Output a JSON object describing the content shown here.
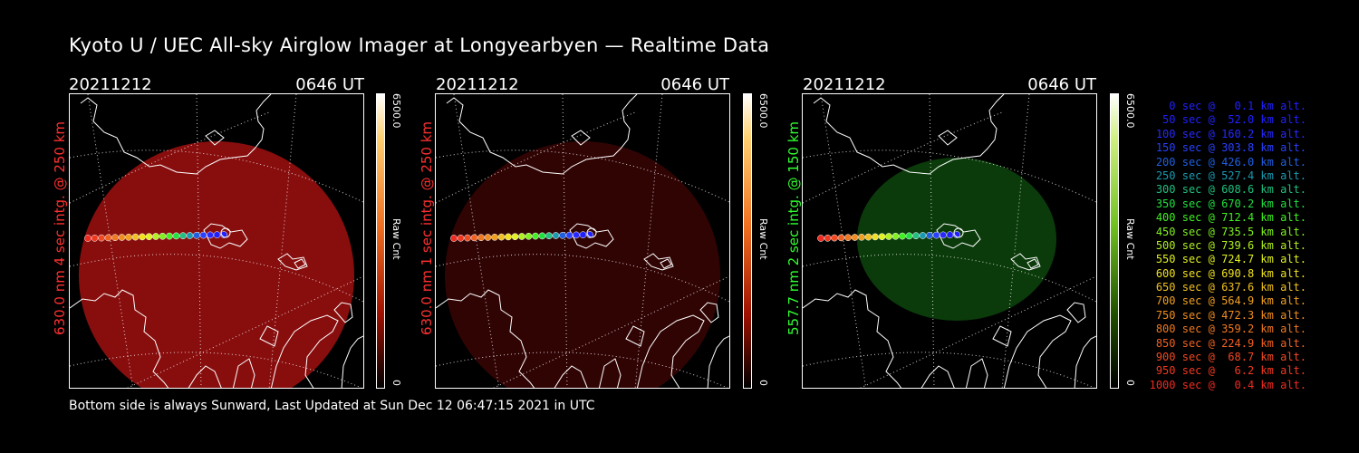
{
  "title": "Kyoto U / UEC All-sky Airglow Imager at Longyearbyen — Realtime Data",
  "footer": "Bottom side is always Sunward, Last Updated at Sun Dec 12 06:47:15 2021 in UTC",
  "panels": [
    {
      "date": "20211212",
      "time": "0646 UT",
      "label": "630.0 nm 4 sec intg. @ 250 km",
      "label_color": "#ff3030",
      "cbar_max": "6500.0",
      "cbar_min": "0",
      "cbar_unit": "Raw Cnt",
      "glow_color": "#a01010",
      "glow_opacity": 0.85
    },
    {
      "date": "20211212",
      "time": "0646 UT",
      "label": "630.0 nm 1 sec intg. @ 250 km",
      "label_color": "#ff3030",
      "cbar_max": "6500.0",
      "cbar_min": "0",
      "cbar_unit": "Raw Cnt",
      "glow_color": "#5a0808",
      "glow_opacity": 0.55
    },
    {
      "date": "20211212",
      "time": "0646 UT",
      "label": "557.7 nm 2 sec intg. @ 150 km",
      "label_color": "#30ff30",
      "cbar_max": "6500.0",
      "cbar_min": "0",
      "cbar_unit": "Raw Cnt",
      "glow_color": "#0e4a0e",
      "glow_opacity": 0.8
    }
  ],
  "legend": [
    {
      "text": "0 sec @   0.1 km alt.",
      "color": "#2020ff"
    },
    {
      "text": "50 sec @  52.0 km alt.",
      "color": "#2020ff"
    },
    {
      "text": "100 sec @ 160.2 km alt.",
      "color": "#2828ff"
    },
    {
      "text": "150 sec @ 303.8 km alt.",
      "color": "#2840ff"
    },
    {
      "text": "200 sec @ 426.0 km alt.",
      "color": "#2060e0"
    },
    {
      "text": "250 sec @ 527.4 km alt.",
      "color": "#1a9ab0"
    },
    {
      "text": "300 sec @ 608.6 km alt.",
      "color": "#20c080"
    },
    {
      "text": "350 sec @ 670.2 km alt.",
      "color": "#20e040"
    },
    {
      "text": "400 sec @ 712.4 km alt.",
      "color": "#40f020"
    },
    {
      "text": "450 sec @ 735.5 km alt.",
      "color": "#80f020"
    },
    {
      "text": "500 sec @ 739.6 km alt.",
      "color": "#b0f020"
    },
    {
      "text": "550 sec @ 724.7 km alt.",
      "color": "#e0f020"
    },
    {
      "text": "600 sec @ 690.8 km alt.",
      "color": "#f0e020"
    },
    {
      "text": "650 sec @ 637.6 km alt.",
      "color": "#f0c020"
    },
    {
      "text": "700 sec @ 564.9 km alt.",
      "color": "#f0a020"
    },
    {
      "text": "750 sec @ 472.3 km alt.",
      "color": "#f08c20"
    },
    {
      "text": "800 sec @ 359.2 km alt.",
      "color": "#f07820"
    },
    {
      "text": "850 sec @ 224.9 km alt.",
      "color": "#f06020"
    },
    {
      "text": "900 sec @  68.7 km alt.",
      "color": "#f04820"
    },
    {
      "text": "950 sec @   6.2 km alt.",
      "color": "#f03820"
    },
    {
      "text": "1000 sec @   0.4 km alt.",
      "color": "#f02a20"
    }
  ]
}
